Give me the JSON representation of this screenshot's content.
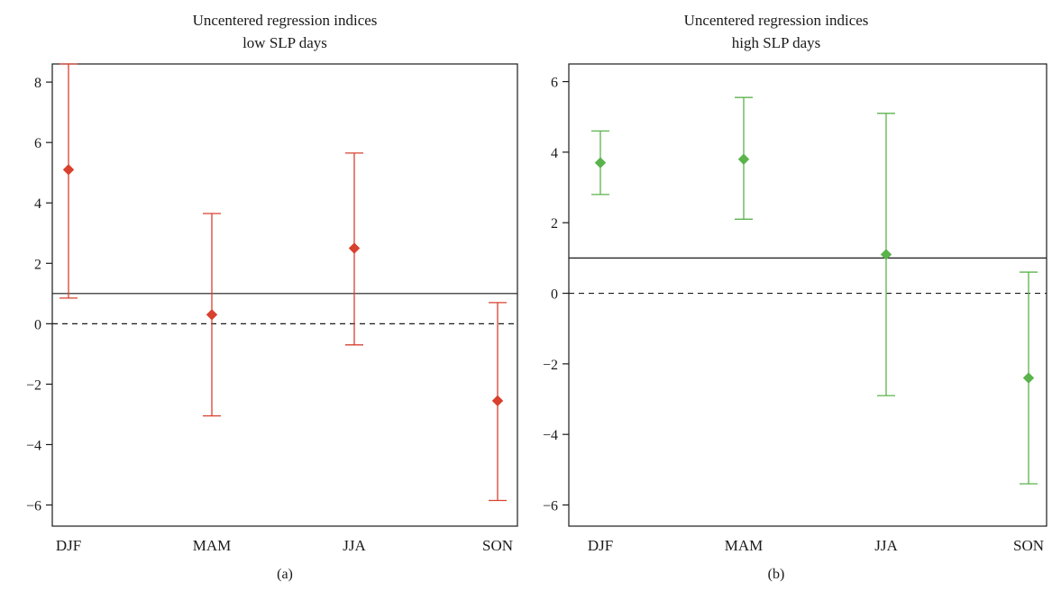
{
  "chart_data": [
    {
      "type": "errorbar",
      "title": "Uncentered regression indices",
      "subtitle": "low SLP days",
      "panel_label": "(a)",
      "categories": [
        "DJF",
        "MAM",
        "JJA",
        "SON"
      ],
      "series": [
        {
          "values": [
            5.1,
            0.3,
            2.5,
            -2.55
          ],
          "lower": [
            0.85,
            -3.05,
            -0.7,
            -5.85
          ],
          "upper": [
            8.6,
            3.65,
            5.65,
            0.7
          ],
          "color": "#d9412f"
        }
      ],
      "yticks": [
        -6,
        -4,
        -2,
        0,
        2,
        4,
        6,
        8
      ],
      "ylim": [
        -6.7,
        8.6
      ],
      "reference_lines": [
        {
          "y": 1,
          "style": "solid"
        },
        {
          "y": 0,
          "style": "dashed"
        }
      ],
      "grid": false
    },
    {
      "type": "errorbar",
      "title": "Uncentered regression indices",
      "subtitle": "high SLP days",
      "panel_label": "(b)",
      "categories": [
        "DJF",
        "MAM",
        "JJA",
        "SON"
      ],
      "series": [
        {
          "values": [
            3.7,
            3.8,
            1.1,
            -2.4
          ],
          "lower": [
            2.8,
            2.1,
            -2.9,
            -5.4
          ],
          "upper": [
            4.6,
            5.55,
            5.1,
            0.6
          ],
          "color": "#5bb34c"
        }
      ],
      "yticks": [
        -6,
        -4,
        -2,
        0,
        2,
        4,
        6
      ],
      "ylim": [
        -6.6,
        6.5
      ],
      "reference_lines": [
        {
          "y": 1,
          "style": "solid"
        },
        {
          "y": 0,
          "style": "dashed"
        }
      ],
      "grid": false
    }
  ]
}
